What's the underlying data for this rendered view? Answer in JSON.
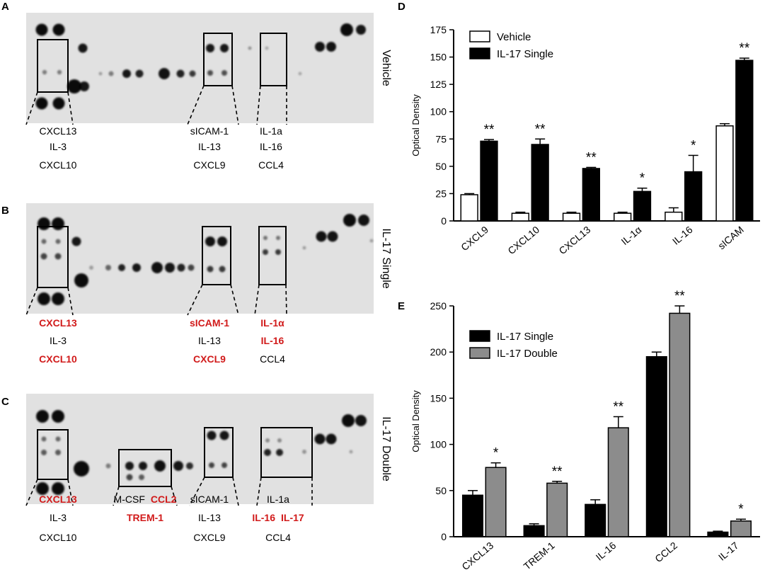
{
  "panels": [
    {
      "letter": "A",
      "condition": "Vehicle",
      "lines": [
        [
          [
            {
              "t": "CXCL13",
              "red": false
            }
          ],
          [
            {
              "t": "IL-3",
              "red": false
            }
          ],
          [
            {
              "t": "CXCL10",
              "red": false
            }
          ]
        ],
        [
          [
            {
              "t": "sICAM-1",
              "red": false
            }
          ],
          [
            {
              "t": "IL-13",
              "red": false
            }
          ],
          [
            {
              "t": "CXCL9",
              "red": false
            }
          ]
        ],
        [
          [
            {
              "t": "IL-1a",
              "red": false
            }
          ],
          [
            {
              "t": "IL-16",
              "red": false
            }
          ],
          [
            {
              "t": "CCL4",
              "red": false
            }
          ]
        ]
      ]
    },
    {
      "letter": "B",
      "condition": "IL-17 Single",
      "lines": [
        [
          [
            {
              "t": "CXCL13",
              "red": true
            }
          ],
          [
            {
              "t": "IL-3",
              "red": false
            }
          ],
          [
            {
              "t": "CXCL10",
              "red": true
            }
          ]
        ],
        [
          [
            {
              "t": "sICAM-1",
              "red": true
            }
          ],
          [
            {
              "t": "IL-13",
              "red": false
            }
          ],
          [
            {
              "t": "CXCL9",
              "red": true
            }
          ]
        ],
        [
          [
            {
              "t": "IL-1α",
              "red": true
            }
          ],
          [
            {
              "t": "IL-16",
              "red": true
            }
          ],
          [
            {
              "t": "CCL4",
              "red": false
            }
          ]
        ]
      ]
    },
    {
      "letter": "C",
      "condition": "IL-17 Double",
      "lines": [
        [
          [
            {
              "t": "CXCL13",
              "red": true
            }
          ],
          [
            {
              "t": "IL-3",
              "red": false
            }
          ],
          [
            {
              "t": "CXCL10",
              "red": false
            }
          ]
        ],
        [
          [
            {
              "t": "M-CSF",
              "red": false
            },
            {
              "t": "CCL2",
              "red": true
            }
          ],
          [
            {
              "t": "TREM-1",
              "red": true
            }
          ]
        ],
        [
          [
            {
              "t": "sICAM-1",
              "red": false
            }
          ],
          [
            {
              "t": "IL-13",
              "red": false
            }
          ],
          [
            {
              "t": "CXCL9",
              "red": false
            }
          ]
        ],
        [
          [
            {
              "t": "IL-1a",
              "red": false
            }
          ],
          [
            {
              "t": "IL-16",
              "red": true
            },
            {
              "t": "IL-17",
              "red": true
            }
          ],
          [
            {
              "t": "CCL4",
              "red": false
            }
          ]
        ]
      ]
    }
  ],
  "chart_data": [
    {
      "panel": "D",
      "type": "bar",
      "ylabel": "Optical Density",
      "ylim": [
        0,
        175
      ],
      "yticks": [
        0,
        25,
        50,
        75,
        100,
        125,
        150,
        175
      ],
      "categories": [
        "CXCL9",
        "CXCL10",
        "CXCL13",
        "IL-1α",
        "IL-16",
        "sICAM"
      ],
      "series": [
        {
          "name": "Vehicle",
          "color": "#ffffff",
          "values": [
            24,
            7,
            7,
            7,
            8,
            87
          ],
          "errors": [
            1,
            1,
            1,
            1,
            4,
            2
          ]
        },
        {
          "name": "IL-17 Single",
          "color": "#000000",
          "values": [
            73,
            70,
            48,
            27,
            45,
            147
          ],
          "errors": [
            1.5,
            5,
            1,
            3,
            15,
            2
          ]
        }
      ],
      "significance": [
        "**",
        "**",
        "**",
        "*",
        "*",
        "**"
      ],
      "legend": "top-left"
    },
    {
      "panel": "E",
      "type": "bar",
      "ylabel": "Optical Density",
      "ylim": [
        0,
        250
      ],
      "yticks": [
        0,
        50,
        100,
        150,
        200,
        250
      ],
      "categories": [
        "CXCL13",
        "TREM-1",
        "IL-16",
        "CCL2",
        "IL-17"
      ],
      "series": [
        {
          "name": "IL-17 Single",
          "color": "#000000",
          "values": [
            45,
            12,
            35,
            195,
            5
          ],
          "errors": [
            5,
            2,
            5,
            5,
            1
          ]
        },
        {
          "name": "IL-17 Double",
          "color": "#8c8c8c",
          "values": [
            75,
            58,
            118,
            242,
            17
          ],
          "errors": [
            5,
            2,
            12,
            8,
            2
          ]
        }
      ],
      "significance": [
        "*",
        "**",
        "**",
        "**",
        "*"
      ],
      "legend": "top-left"
    }
  ]
}
